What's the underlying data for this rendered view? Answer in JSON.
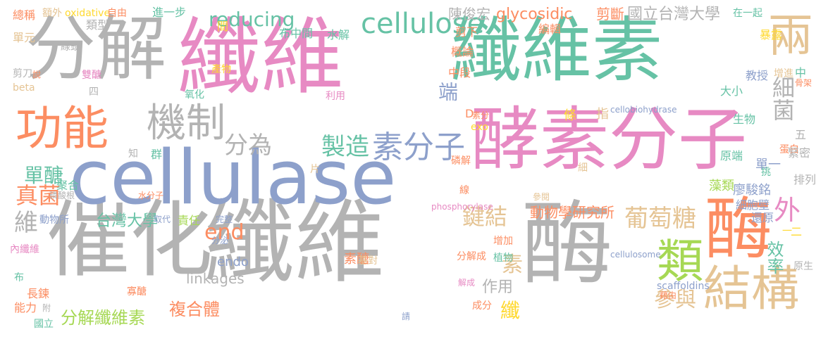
{
  "colors": {
    "gray": "#b3b3b3",
    "pink": "#e78ac3",
    "teal": "#66c2a5",
    "orange": "#fc8d62",
    "blue": "#8da0cb",
    "green": "#a6d854",
    "yellow": "#ffd92f",
    "tan": "#e5c494"
  },
  "words": [
    {
      "text": "分解",
      "color": "gray"
    },
    {
      "text": "纖維",
      "color": "pink"
    },
    {
      "text": "纖維素",
      "color": "teal"
    },
    {
      "text": "兩",
      "color": "tan"
    },
    {
      "text": "催化",
      "color": "gray"
    },
    {
      "text": "纖維",
      "color": "gray"
    },
    {
      "text": "酶",
      "color": "gray"
    },
    {
      "text": "cellulase",
      "color": "blue"
    },
    {
      "text": "酵素分子",
      "color": "pink"
    },
    {
      "text": "酶",
      "color": "orange"
    },
    {
      "text": "功能",
      "color": "orange"
    },
    {
      "text": "機制",
      "color": "gray"
    },
    {
      "text": "結構",
      "color": "tan"
    },
    {
      "text": "類",
      "color": "green"
    },
    {
      "text": "cellulose",
      "color": "teal"
    },
    {
      "text": "reducing",
      "color": "teal"
    },
    {
      "text": "製造",
      "color": "teal"
    },
    {
      "text": "素分子",
      "color": "blue"
    },
    {
      "text": "分為",
      "color": "gray"
    },
    {
      "text": "細菌",
      "color": "gray"
    },
    {
      "text": "葡萄糖",
      "color": "tan"
    },
    {
      "text": "外",
      "color": "pink"
    },
    {
      "text": "鍵結",
      "color": "tan"
    },
    {
      "text": "素",
      "color": "tan"
    },
    {
      "text": "參與",
      "color": "tan"
    },
    {
      "text": "真菌",
      "color": "orange"
    },
    {
      "text": "單醣",
      "color": "teal"
    },
    {
      "text": "維",
      "color": "gray"
    },
    {
      "text": "end",
      "color": "orange"
    },
    {
      "text": "端",
      "color": "blue"
    },
    {
      "text": "作用",
      "color": "gray"
    },
    {
      "text": "效率",
      "color": "teal"
    },
    {
      "text": "纖",
      "color": "yellow"
    },
    {
      "text": "複合體",
      "color": "orange"
    },
    {
      "text": "分解纖維素",
      "color": "green"
    },
    {
      "text": "台灣大學",
      "color": "teal"
    },
    {
      "text": "動物學研究所",
      "color": "orange"
    },
    {
      "text": "linkages",
      "color": "gray"
    },
    {
      "text": "endo",
      "color": "blue"
    },
    {
      "text": "素醣",
      "color": "orange"
    },
    {
      "text": "glycosidic",
      "color": "orange"
    },
    {
      "text": "國立台灣大學",
      "color": "gray"
    },
    {
      "text": "陳俊宏",
      "color": "gray"
    },
    {
      "text": "剪斷",
      "color": "orange"
    },
    {
      "text": "總稱",
      "color": "orange"
    },
    {
      "text": "額外",
      "color": "tan"
    },
    {
      "text": "oxidative",
      "color": "yellow"
    },
    {
      "text": "自由",
      "color": "orange"
    },
    {
      "text": "進一步",
      "color": "teal"
    },
    {
      "text": "布中間",
      "color": "teal"
    },
    {
      "text": "在一起",
      "color": "teal"
    },
    {
      "text": "單元",
      "color": "tan"
    },
    {
      "text": "類型",
      "color": "gray"
    },
    {
      "text": "水解",
      "color": "teal"
    },
    {
      "text": "剪下",
      "color": "orange"
    },
    {
      "text": "編輯",
      "color": "orange"
    },
    {
      "text": "暴露",
      "color": "yellow"
    },
    {
      "text": "線頭",
      "color": "gray"
    },
    {
      "text": "概論",
      "color": "orange"
    },
    {
      "text": "剪刀",
      "color": "gray"
    },
    {
      "text": "說",
      "color": "orange"
    },
    {
      "text": "雙醣",
      "color": "pink"
    },
    {
      "text": "beta",
      "color": "tan"
    },
    {
      "text": "四",
      "color": "gray"
    },
    {
      "text": "產物",
      "color": "yellow"
    },
    {
      "text": "中段",
      "color": "orange"
    },
    {
      "text": "增進",
      "color": "tan"
    },
    {
      "text": "教授",
      "color": "blue"
    },
    {
      "text": "中",
      "color": "teal"
    },
    {
      "text": "骨架",
      "color": "orange"
    },
    {
      "text": "大小",
      "color": "teal"
    },
    {
      "text": "利用",
      "color": "pink"
    },
    {
      "text": "氧化",
      "color": "teal"
    },
    {
      "text": "cellobiohydrase",
      "color": "blue"
    },
    {
      "text": "生物",
      "color": "teal"
    },
    {
      "text": "D",
      "color": "orange"
    },
    {
      "text": "素分",
      "color": "orange"
    },
    {
      "text": "exo",
      "color": "yellow"
    },
    {
      "text": "條",
      "color": "yellow"
    },
    {
      "text": "指",
      "color": "tan"
    },
    {
      "text": "五",
      "color": "gray"
    },
    {
      "text": "知",
      "color": "gray"
    },
    {
      "text": "群",
      "color": "teal"
    },
    {
      "text": "蛋白",
      "color": "orange"
    },
    {
      "text": "緊密",
      "color": "gray"
    },
    {
      "text": "磷解",
      "color": "orange"
    },
    {
      "text": "原端",
      "color": "teal"
    },
    {
      "text": "片",
      "color": "tan"
    },
    {
      "text": "細",
      "color": "tan"
    },
    {
      "text": "單一",
      "color": "blue"
    },
    {
      "text": "挑",
      "color": "teal"
    },
    {
      "text": "聚合",
      "color": "teal"
    },
    {
      "text": "藻類",
      "color": "green"
    },
    {
      "text": "廖駿銘",
      "color": "blue"
    },
    {
      "text": "排列",
      "color": "gray"
    },
    {
      "text": "磷酸根",
      "color": "gray"
    },
    {
      "text": "水分子",
      "color": "orange"
    },
    {
      "text": "線",
      "color": "orange"
    },
    {
      "text": "細胞壁",
      "color": "blue"
    },
    {
      "text": "phosphorylase",
      "color": "pink"
    },
    {
      "text": "參閱",
      "color": "tan"
    },
    {
      "text": "還原",
      "color": "blue"
    },
    {
      "text": "動物所",
      "color": "blue"
    },
    {
      "text": "取代",
      "color": "blue"
    },
    {
      "text": "完整",
      "color": "blue"
    },
    {
      "text": "責任",
      "color": "green"
    },
    {
      "text": "二",
      "color": "yellow"
    },
    {
      "text": "分泌",
      "color": "blue"
    },
    {
      "text": "增加",
      "color": "orange"
    },
    {
      "text": "植物",
      "color": "teal"
    },
    {
      "text": "cellulosome",
      "color": "blue"
    },
    {
      "text": "內纖維",
      "color": "pink"
    },
    {
      "text": "基對",
      "color": "tan"
    },
    {
      "text": "分解成",
      "color": "orange"
    },
    {
      "text": "原生",
      "color": "gray"
    },
    {
      "text": "布",
      "color": "teal"
    },
    {
      "text": "長鍊",
      "color": "orange"
    },
    {
      "text": "寡醣",
      "color": "orange"
    },
    {
      "text": "解成",
      "color": "pink"
    },
    {
      "text": "成分",
      "color": "orange"
    },
    {
      "text": "scaffoldins",
      "color": "blue"
    },
    {
      "text": "藉由",
      "color": "orange"
    },
    {
      "text": "能力",
      "color": "orange"
    },
    {
      "text": "附",
      "color": "gray"
    },
    {
      "text": "國立",
      "color": "teal"
    },
    {
      "text": "請",
      "color": "blue"
    },
    {
      "text": "間",
      "color": "yellow"
    },
    {
      "text": "一",
      "color": "yellow"
    }
  ]
}
